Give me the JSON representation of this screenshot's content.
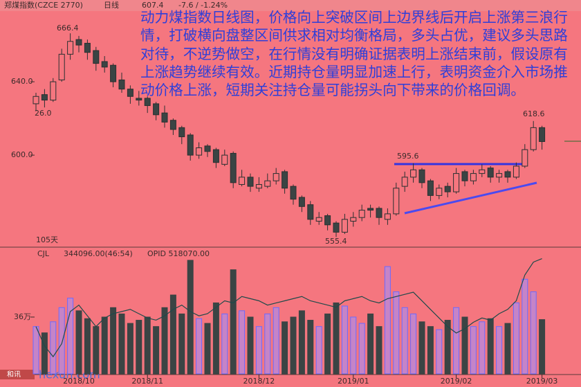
{
  "header": {
    "symbol": "郑煤指数(CZCE 2770)",
    "period": "日线",
    "last": "607.4",
    "change": "-7.6 / -1.24%"
  },
  "commentary": "动力煤指数日线图，价格向上突破区间上边界线后开启上涨第三浪行情，打破横向盘整区间供求相对均衡格局，多头占优，建议多头思路对待，不逆势做空，在行情没有明确证据表明上涨结束前，假设原有上涨趋势继续有效。近期持仓量明显加速上行，表明资金介入市场推动价格上涨，短期关注持仓量可能拐头向下带来的价格回调。",
  "watermark": {
    "brand": "和讯",
    "site": "hexun.com"
  },
  "chart_data": {
    "type": "candlestick",
    "categories": [
      null,
      null,
      null,
      null,
      null,
      "2018/10",
      null,
      null,
      null,
      null,
      null,
      null,
      null,
      "2018/11",
      null,
      null,
      null,
      null,
      null,
      null,
      null,
      null,
      null,
      null,
      null,
      null,
      "2018/12",
      null,
      null,
      null,
      null,
      null,
      null,
      null,
      null,
      null,
      null,
      "2019/01",
      null,
      null,
      null,
      null,
      null,
      null,
      null,
      null,
      null,
      null,
      null,
      "2019/02",
      null,
      null,
      null,
      null,
      null,
      null,
      null,
      null,
      null,
      "2019/03"
    ],
    "ohlc": [
      [
        628,
        634,
        624,
        632
      ],
      [
        633,
        636,
        626.0,
        630
      ],
      [
        630,
        642,
        629,
        640
      ],
      [
        641,
        658,
        640,
        655
      ],
      [
        655,
        666.4,
        652,
        662
      ],
      [
        663,
        665,
        656,
        660
      ],
      [
        661,
        663,
        652,
        656
      ],
      [
        657,
        659,
        646,
        650
      ],
      [
        651,
        654,
        645,
        648
      ],
      [
        649,
        650,
        637,
        640
      ],
      [
        641,
        645,
        634,
        636
      ],
      [
        636,
        638,
        628,
        632
      ],
      [
        631,
        635,
        627,
        630
      ],
      [
        631,
        632,
        623,
        627
      ],
      [
        628,
        629,
        619,
        622
      ],
      [
        623,
        627,
        615,
        618
      ],
      [
        619,
        620,
        611,
        614
      ],
      [
        615,
        616,
        606,
        610
      ],
      [
        611,
        612,
        597,
        600
      ],
      [
        600,
        607,
        598,
        604
      ],
      [
        605,
        606,
        599,
        602
      ],
      [
        603,
        604,
        593,
        596
      ],
      [
        595,
        603,
        594,
        600
      ],
      [
        601,
        602,
        582,
        585
      ],
      [
        584,
        592,
        583,
        588
      ],
      [
        588,
        590,
        580,
        583
      ],
      [
        582,
        588,
        580,
        584
      ],
      [
        583,
        590,
        582,
        586
      ],
      [
        586,
        593,
        584,
        590
      ],
      [
        591,
        592,
        579,
        582
      ],
      [
        583,
        584,
        573,
        576
      ],
      [
        577,
        578,
        569,
        572
      ],
      [
        573,
        575,
        562,
        565
      ],
      [
        564,
        569,
        562,
        566
      ],
      [
        567,
        568,
        559,
        562
      ],
      [
        563,
        564,
        555.4,
        558
      ],
      [
        558,
        568,
        557,
        565
      ],
      [
        564,
        569,
        561,
        566
      ],
      [
        566,
        573,
        564,
        570
      ],
      [
        571,
        573,
        566,
        570
      ],
      [
        571,
        572,
        562,
        566
      ],
      [
        565,
        571,
        562,
        568
      ],
      [
        568,
        585,
        567,
        582
      ],
      [
        583,
        591,
        580,
        588
      ],
      [
        588,
        595.6,
        585,
        592
      ],
      [
        592,
        593,
        582,
        585
      ],
      [
        586,
        587,
        575,
        578
      ],
      [
        578,
        584,
        576,
        582
      ],
      [
        583,
        585,
        577,
        580
      ],
      [
        580,
        593,
        579,
        590
      ],
      [
        591,
        592,
        583,
        586
      ],
      [
        586,
        592,
        584,
        590
      ],
      [
        590,
        595,
        588,
        592
      ],
      [
        593,
        594,
        585,
        588
      ],
      [
        588,
        592,
        585,
        590
      ],
      [
        591,
        592,
        585,
        588
      ],
      [
        588,
        596,
        587,
        594
      ],
      [
        594,
        606,
        593,
        603
      ],
      [
        603,
        618.6,
        602,
        615
      ],
      [
        615,
        616,
        603,
        607.4
      ]
    ],
    "ylim": [
      550.6,
      678.9
    ],
    "yticks": [
      {
        "value": 640,
        "label": "640.0"
      },
      {
        "value": 600,
        "label": "600.0"
      }
    ],
    "annotations": [
      "666.4",
      "26.0",
      "555.4",
      "595.6",
      "618.6",
      "105天"
    ],
    "volume_title": "CJL",
    "volume_label": "344096.00(46:54)",
    "oi_label": "OPID 518070.00",
    "volume": [
      300000,
      260000,
      330000,
      420000,
      480000,
      400000,
      350000,
      300000,
      360000,
      420000,
      380000,
      320000,
      340000,
      360000,
      300000,
      420000,
      500000,
      380000,
      720000,
      350000,
      320000,
      450000,
      380000,
      660000,
      400000,
      360000,
      300000,
      380000,
      420000,
      330000,
      360000,
      400000,
      340000,
      300000,
      380000,
      450000,
      430000,
      360000,
      320000,
      380000,
      300000,
      680000,
      520000,
      420000,
      380000,
      330000,
      300000,
      280000,
      340000,
      420000,
      360000,
      300000,
      330000,
      350000,
      300000,
      320000,
      450000,
      600000,
      520000,
      344096
    ],
    "vlim": [
      0,
      790000
    ],
    "vticks": [
      {
        "value": 360000,
        "label": "36万"
      }
    ],
    "open_interest": [
      360000,
      315000,
      290000,
      320000,
      395000,
      410000,
      385000,
      360000,
      380000,
      390000,
      395000,
      400000,
      390000,
      380000,
      375000,
      385000,
      400000,
      410000,
      395000,
      385000,
      390000,
      405000,
      420000,
      415000,
      430000,
      425000,
      420000,
      410000,
      415000,
      420000,
      425000,
      430000,
      420000,
      415000,
      410000,
      405000,
      420000,
      425000,
      430000,
      420000,
      415000,
      425000,
      430000,
      435000,
      440000,
      420000,
      400000,
      380000,
      360000,
      345000,
      355000,
      370000,
      380000,
      375000,
      390000,
      400000,
      420000,
      480000,
      510000,
      518070
    ],
    "y2lim": [
      250000,
      540000
    ],
    "up_color": "#f5767f",
    "down_color": "#3b4444",
    "edge_color": "#2a3030",
    "volume_edge": "#6a6aff",
    "oi_color": "#1e4a4a"
  }
}
